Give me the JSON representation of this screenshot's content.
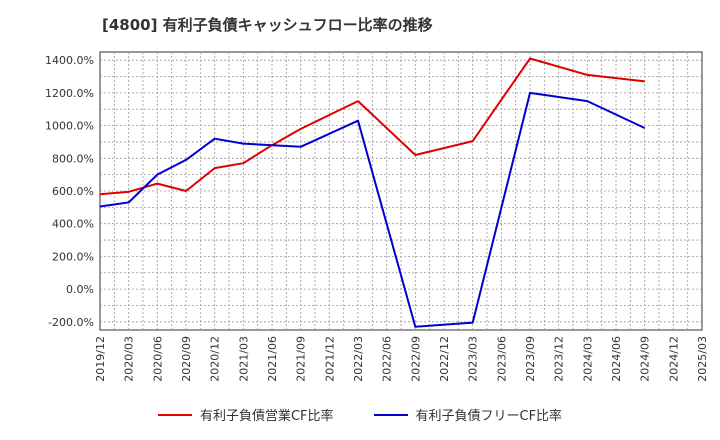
{
  "chart_data": {
    "type": "line",
    "title": "[4800]  有利子負債キャッシュフロー比率の推移",
    "xlabel": "",
    "ylabel": "",
    "ylim": [
      -250,
      1450
    ],
    "yticks": [
      -200,
      0,
      200,
      400,
      600,
      800,
      1000,
      1200,
      1400
    ],
    "ytick_labels": [
      "-200.0%",
      "0.0%",
      "200.0%",
      "400.0%",
      "600.0%",
      "800.0%",
      "1000.0%",
      "1200.0%",
      "1400.0%"
    ],
    "x": [
      "2019/12",
      "2020/03",
      "2020/06",
      "2020/09",
      "2020/12",
      "2021/03",
      "2021/06",
      "2021/09",
      "2021/12",
      "2022/03",
      "2022/06",
      "2022/09",
      "2022/12",
      "2023/03",
      "2023/06",
      "2023/09",
      "2023/12",
      "2024/03",
      "2024/06",
      "2024/09",
      "2024/12",
      "2025/03"
    ],
    "grid": true,
    "legend_position": "bottom",
    "series": [
      {
        "name": "有利子負債営業CF比率",
        "color": "#e00000",
        "values": [
          580,
          595,
          645,
          600,
          740,
          770,
          880,
          980,
          1065,
          1150,
          null,
          820,
          null,
          905,
          null,
          1410,
          null,
          1310,
          null,
          1270,
          null,
          null
        ]
      },
      {
        "name": "有利子負債フリーCF比率",
        "color": "#0000d0",
        "values": [
          505,
          530,
          700,
          790,
          920,
          890,
          null,
          870,
          null,
          1030,
          null,
          -230,
          null,
          -205,
          null,
          1200,
          null,
          1150,
          null,
          985,
          null,
          null
        ]
      }
    ]
  }
}
